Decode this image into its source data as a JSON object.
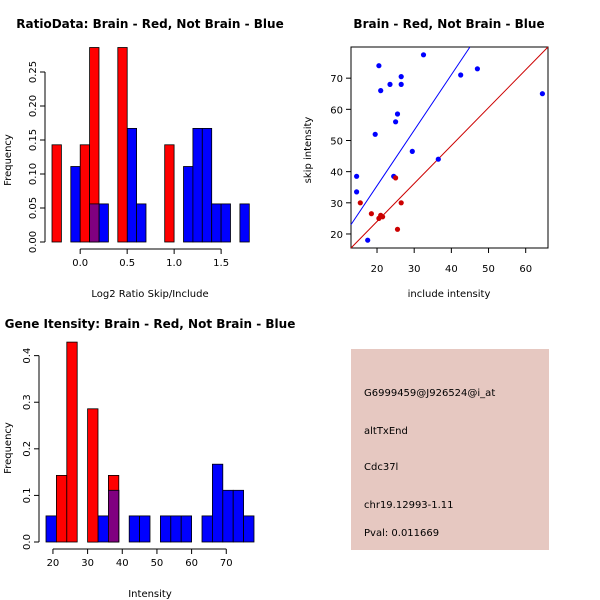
{
  "chart_data": [
    {
      "type": "bar",
      "title": "RatioData: Brain - Red, Not Brain - Blue",
      "xlabel": "Log2 Ratio Skip/Include",
      "ylabel": "Frequency",
      "xlim": [
        -0.3,
        1.85
      ],
      "ylim": [
        0,
        0.3
      ],
      "xticks": [
        "0.0",
        "0.5",
        "1.0",
        "1.5"
      ],
      "yticks": [
        "0.00",
        "0.05",
        "0.10",
        "0.15",
        "0.20",
        "0.25"
      ],
      "bin_width": 0.1,
      "series": [
        {
          "name": "Not Brain",
          "color": "#0000ff",
          "bins": [
            [
              -0.05,
              0.111
            ],
            [
              0.25,
              0.056
            ],
            [
              0.55,
              0.167
            ],
            [
              0.65,
              0.056
            ],
            [
              1.15,
              0.111
            ],
            [
              1.25,
              0.167
            ],
            [
              1.35,
              0.167
            ],
            [
              1.45,
              0.056
            ],
            [
              1.55,
              0.056
            ],
            [
              1.75,
              0.056
            ]
          ]
        },
        {
          "name": "Brain",
          "color": "#ff0000",
          "bins": [
            [
              -0.25,
              0.143
            ],
            [
              0.05,
              0.143
            ],
            [
              0.15,
              0.286
            ],
            [
              0.45,
              0.286
            ],
            [
              0.95,
              0.143
            ]
          ]
        }
      ],
      "overlap": {
        "color": "#800080",
        "bins": [
          [
            0.15,
            0.056
          ]
        ]
      }
    },
    {
      "type": "scatter",
      "title": "Brain - Red, Not Brain - Blue",
      "xlabel": "include intensity",
      "ylabel": "skip intensity",
      "xlim": [
        13,
        66
      ],
      "ylim": [
        15.5,
        80
      ],
      "xticks": [
        "20",
        "30",
        "40",
        "50",
        "60"
      ],
      "yticks": [
        "20",
        "30",
        "40",
        "50",
        "60",
        "70"
      ],
      "series": [
        {
          "name": "Not Brain",
          "color": "#0000ff",
          "points": [
            [
              14.5,
              38.5
            ],
            [
              14.5,
              33.5
            ],
            [
              17.5,
              18
            ],
            [
              19.5,
              52
            ],
            [
              20.5,
              74
            ],
            [
              21,
              66
            ],
            [
              23.5,
              68
            ],
            [
              24.5,
              38.5
            ],
            [
              25,
              56
            ],
            [
              25.5,
              58.5
            ],
            [
              26.5,
              68
            ],
            [
              26.5,
              70.5
            ],
            [
              29.5,
              46.5
            ],
            [
              32.5,
              77.5
            ],
            [
              36.5,
              44
            ],
            [
              42.5,
              71
            ],
            [
              47,
              73
            ],
            [
              64.5,
              65
            ]
          ],
          "fit": {
            "x0": 13,
            "y0": 23,
            "x1": 45,
            "y1": 80
          }
        },
        {
          "name": "Brain",
          "color": "#cc0000",
          "points": [
            [
              15.5,
              30
            ],
            [
              18.5,
              26.5
            ],
            [
              20.5,
              25
            ],
            [
              21,
              26
            ],
            [
              21.5,
              25.5
            ],
            [
              25,
              38
            ],
            [
              25.5,
              21.5
            ],
            [
              26.5,
              30
            ]
          ],
          "fit": {
            "x0": 13,
            "y0": 15.5,
            "x1": 66,
            "y1": 80
          }
        }
      ]
    },
    {
      "type": "bar",
      "title": "Gene Itensity: Brain - Red, Not Brain - Blue",
      "xlabel": "Intensity",
      "ylabel": "Frequency",
      "xlim": [
        18,
        78
      ],
      "ylim": [
        0,
        0.44
      ],
      "xticks": [
        "20",
        "30",
        "40",
        "50",
        "60",
        "70"
      ],
      "yticks": [
        "0.0",
        "0.1",
        "0.2",
        "0.3",
        "0.4"
      ],
      "bin_width": 3,
      "series": [
        {
          "name": "Not Brain",
          "color": "#0000ff",
          "bins": [
            [
              19.5,
              0.056
            ],
            [
              34.5,
              0.056
            ],
            [
              37.5,
              0.111
            ],
            [
              43.5,
              0.056
            ],
            [
              46.5,
              0.056
            ],
            [
              52.5,
              0.056
            ],
            [
              55.5,
              0.056
            ],
            [
              58.5,
              0.056
            ],
            [
              64.5,
              0.056
            ],
            [
              67.5,
              0.167
            ],
            [
              70.5,
              0.111
            ],
            [
              73.5,
              0.111
            ],
            [
              76.5,
              0.056
            ]
          ]
        },
        {
          "name": "Brain",
          "color": "#ff0000",
          "bins": [
            [
              22.5,
              0.143
            ],
            [
              25.5,
              0.429
            ],
            [
              31.5,
              0.286
            ],
            [
              37.5,
              0.143
            ]
          ]
        }
      ],
      "overlap": {
        "color": "#800080",
        "bins": [
          [
            37.5,
            0.111
          ]
        ]
      }
    }
  ],
  "info": {
    "probe": "G6999459@J926524@i_at",
    "event": "altTxEnd",
    "gene": "Cdc37l",
    "location": "chr19.12993-1.11",
    "pval": "Pval: 0.011669",
    "pval_color": "#aa0000",
    "bg_color": "#e6c8c1"
  }
}
